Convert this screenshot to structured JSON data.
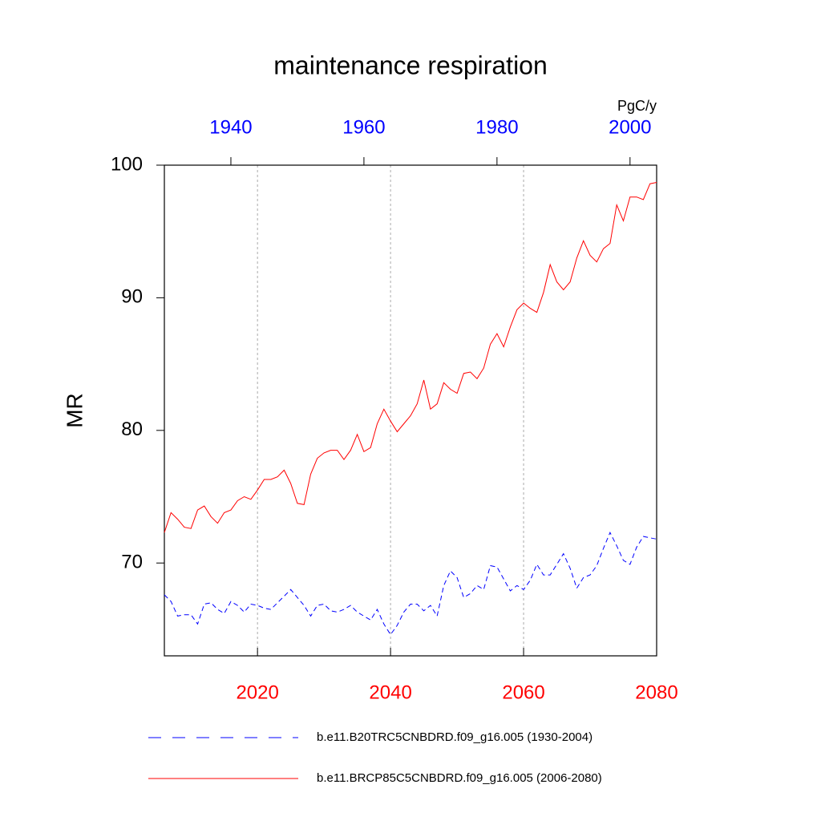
{
  "chart_data": {
    "type": "line",
    "title": "maintenance respiration",
    "ylabel": "MR",
    "units": "PgC/y",
    "x": [
      2006,
      2007,
      2008,
      2009,
      2010,
      2011,
      2012,
      2013,
      2014,
      2015,
      2016,
      2017,
      2018,
      2019,
      2020,
      2021,
      2022,
      2023,
      2024,
      2025,
      2026,
      2027,
      2028,
      2029,
      2030,
      2031,
      2032,
      2033,
      2034,
      2035,
      2036,
      2037,
      2038,
      2039,
      2040,
      2041,
      2042,
      2043,
      2044,
      2045,
      2046,
      2047,
      2048,
      2049,
      2050,
      2051,
      2052,
      2053,
      2054,
      2055,
      2056,
      2057,
      2058,
      2059,
      2060,
      2061,
      2062,
      2063,
      2064,
      2065,
      2066,
      2067,
      2068,
      2069,
      2070,
      2071,
      2072,
      2073,
      2074,
      2075,
      2076,
      2077,
      2078,
      2079,
      2080
    ],
    "x2": [
      1930,
      1931,
      1932,
      1933,
      1934,
      1935,
      1936,
      1937,
      1938,
      1939,
      1940,
      1941,
      1942,
      1943,
      1944,
      1945,
      1946,
      1947,
      1948,
      1949,
      1950,
      1951,
      1952,
      1953,
      1954,
      1955,
      1956,
      1957,
      1958,
      1959,
      1960,
      1961,
      1962,
      1963,
      1964,
      1965,
      1966,
      1967,
      1968,
      1969,
      1970,
      1971,
      1972,
      1973,
      1974,
      1975,
      1976,
      1977,
      1978,
      1979,
      1980,
      1981,
      1982,
      1983,
      1984,
      1985,
      1986,
      1987,
      1988,
      1989,
      1990,
      1991,
      1992,
      1993,
      1994,
      1995,
      1996,
      1997,
      1998,
      1999,
      2000,
      2001,
      2002,
      2003,
      2004
    ],
    "series": [
      {
        "name": "b.e11.B20TRC5CNBDRD.f09_g16.005 (1930-2004)",
        "color": "#0000ff",
        "dash": true,
        "axis": "x2",
        "values": [
          67.6,
          67.1,
          66.0,
          66.1,
          66.1,
          65.4,
          66.9,
          67.0,
          66.5,
          66.2,
          67.1,
          66.8,
          66.3,
          66.9,
          66.8,
          66.6,
          66.5,
          67.0,
          67.5,
          68.0,
          67.4,
          66.8,
          66.0,
          66.8,
          66.9,
          66.4,
          66.3,
          66.5,
          66.8,
          66.3,
          66.0,
          65.7,
          66.5,
          65.4,
          64.6,
          65.3,
          66.3,
          66.9,
          66.9,
          66.4,
          66.8,
          66.0,
          68.3,
          69.4,
          68.9,
          67.4,
          67.7,
          68.3,
          68.0,
          69.8,
          69.7,
          68.8,
          67.9,
          68.3,
          68.0,
          68.7,
          69.9,
          69.1,
          69.1,
          69.9,
          70.7,
          69.6,
          68.1,
          68.9,
          69.1,
          69.8,
          71.1,
          72.3,
          71.3,
          70.2,
          69.9,
          71.2,
          72.0,
          71.9,
          71.8
        ]
      },
      {
        "name": "b.e11.BRCP85C5CNBDRD.f09_g16.005 (2006-2080)",
        "color": "#ff0000",
        "dash": false,
        "values": [
          72.3,
          73.8,
          73.3,
          72.7,
          72.6,
          74.0,
          74.3,
          73.5,
          73.0,
          73.8,
          74.0,
          74.7,
          75.0,
          74.8,
          75.5,
          76.3,
          76.3,
          76.5,
          77.0,
          76.0,
          74.5,
          74.4,
          76.7,
          77.9,
          78.3,
          78.5,
          78.5,
          77.8,
          78.5,
          79.7,
          78.4,
          78.7,
          80.5,
          81.6,
          80.7,
          79.9,
          80.5,
          81.1,
          82.0,
          83.8,
          81.6,
          82.0,
          83.6,
          83.1,
          82.8,
          84.3,
          84.4,
          83.9,
          84.7,
          86.5,
          87.3,
          86.3,
          87.8,
          89.1,
          89.6,
          89.2,
          88.9,
          90.4,
          92.5,
          91.2,
          90.6,
          91.2,
          93.0,
          94.3,
          93.2,
          92.7,
          93.7,
          94.1,
          97.0,
          95.8,
          97.6,
          97.6,
          97.4,
          98.6,
          98.7
        ]
      }
    ],
    "xlim": [
      2006,
      2080
    ],
    "xticks": [
      2020,
      2040,
      2060,
      2080
    ],
    "xtick_color": "#ff0000",
    "x2lim": [
      1930,
      2004
    ],
    "x2ticks": [
      1940,
      1960,
      1980,
      2000
    ],
    "x2tick_color": "#0000ff",
    "ylim": [
      63,
      100
    ],
    "yticks": [
      70,
      80,
      90,
      100
    ],
    "grid": true
  }
}
